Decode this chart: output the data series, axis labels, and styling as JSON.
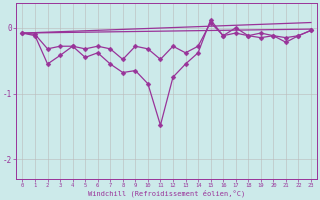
{
  "xlabel": "Windchill (Refroidissement éolien,°C)",
  "x": [
    0,
    1,
    2,
    3,
    4,
    5,
    6,
    7,
    8,
    9,
    10,
    11,
    12,
    13,
    14,
    15,
    16,
    17,
    18,
    19,
    20,
    21,
    22,
    23
  ],
  "line1": [
    -0.08,
    -0.1,
    -0.32,
    -0.28,
    -0.28,
    -0.32,
    -0.28,
    -0.32,
    -0.48,
    -0.28,
    -0.32,
    -0.48,
    -0.28,
    -0.38,
    -0.28,
    0.08,
    -0.12,
    -0.08,
    -0.12,
    -0.08,
    -0.12,
    -0.15,
    -0.12,
    -0.04
  ],
  "line2": [
    -0.08,
    -0.12,
    -0.55,
    -0.42,
    -0.28,
    -0.45,
    -0.38,
    -0.55,
    -0.68,
    -0.65,
    -0.85,
    -1.48,
    -0.75,
    -0.55,
    -0.38,
    0.12,
    -0.12,
    0.0,
    -0.12,
    -0.15,
    -0.12,
    -0.22,
    -0.12,
    -0.04
  ],
  "trend1_x": [
    0,
    23
  ],
  "trend1_y": [
    -0.08,
    -0.02
  ],
  "trend2_x": [
    0,
    23
  ],
  "trend2_y": [
    -0.08,
    0.08
  ],
  "line_color": "#993399",
  "bg_color": "#cceaea",
  "grid_color": "#bbbbbb",
  "ylim": [
    -2.3,
    0.38
  ],
  "xlim": [
    -0.5,
    23.5
  ],
  "yticks": [
    0,
    -1,
    -2
  ],
  "markersize": 2.5,
  "linewidth": 0.9
}
